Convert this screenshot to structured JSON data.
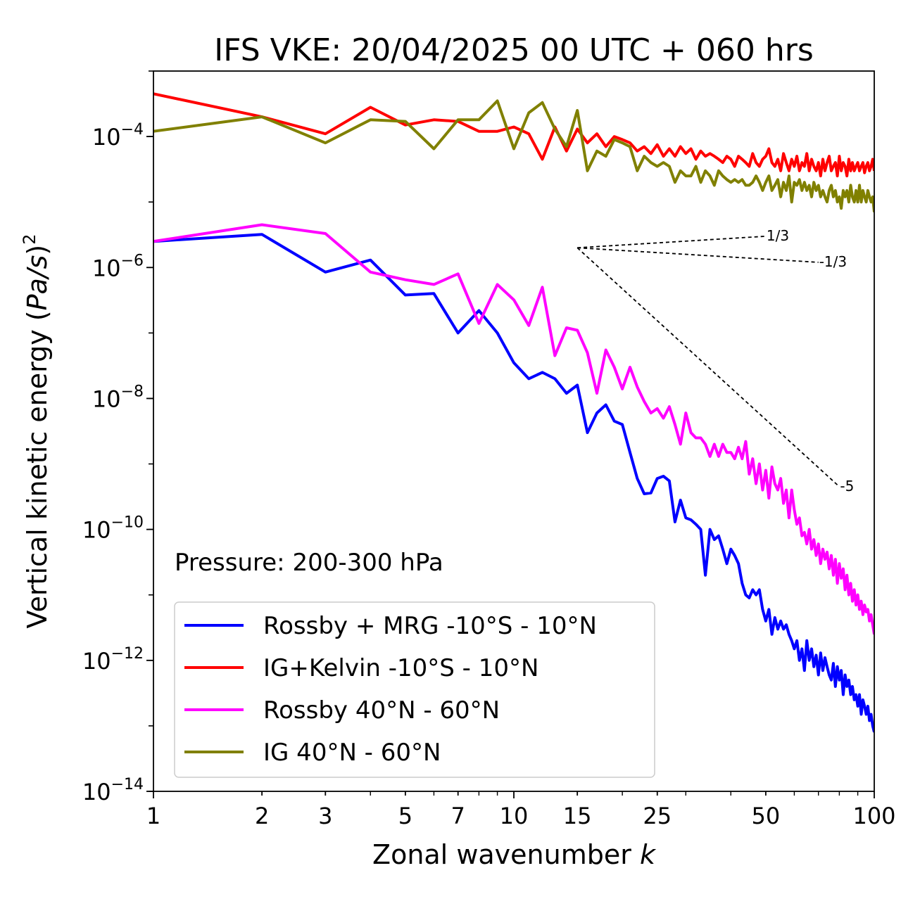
{
  "chart_data": {
    "type": "line",
    "title": "IFS VKE: 20/04/2025 00 UTC + 060 hrs",
    "xlabel_main": "Zonal wavenumber ",
    "xlabel_var": "k",
    "ylabel_main": "Vertical kinetic energy (",
    "ylabel_var": "Pa/s",
    "ylabel_close": ")",
    "ylabel_exp": "2",
    "xscale": "log",
    "yscale": "log",
    "xlim": [
      1,
      100
    ],
    "ylim": [
      1e-14,
      0.001
    ],
    "x_ticks": [
      1,
      2,
      3,
      5,
      7,
      10,
      15,
      25,
      50,
      100
    ],
    "x_tick_labels": [
      "1",
      "2",
      "3",
      "5",
      "7",
      "10",
      "15",
      "25",
      "50",
      "100"
    ],
    "y_ticks": [
      {
        "value": 0.0001,
        "base": "10",
        "exp": "−4"
      },
      {
        "value": 1e-06,
        "base": "10",
        "exp": "−6"
      },
      {
        "value": 1e-08,
        "base": "10",
        "exp": "−8"
      },
      {
        "value": 1e-10,
        "base": "10",
        "exp": "−10"
      },
      {
        "value": 1e-12,
        "base": "10",
        "exp": "−12"
      },
      {
        "value": 1e-14,
        "base": "10",
        "exp": "−14"
      }
    ],
    "annotation": "Pressure: 200-300 hPa",
    "legend_position": "lower-left",
    "reference_lines": [
      {
        "label": "1/3",
        "from": [
          15,
          2e-06
        ],
        "to": [
          50,
          3e-06
        ]
      },
      {
        "label": "-1/3",
        "from": [
          15,
          2e-06
        ],
        "to": [
          70,
          1.2e-06
        ]
      },
      {
        "label": "-5",
        "from": [
          15,
          2e-06
        ],
        "to": [
          80,
          4.5e-10
        ]
      }
    ],
    "series": [
      {
        "name": "Rossby + MRG -10°S - 10°N",
        "color": "#0000ff",
        "x": [
          1,
          2,
          3,
          4,
          5,
          6,
          7,
          8,
          9,
          10,
          11,
          12,
          13,
          14,
          15,
          16,
          17,
          18,
          19,
          20,
          21,
          22,
          23,
          24,
          25,
          26,
          27,
          28,
          29,
          30,
          31,
          32,
          33,
          34,
          35,
          36,
          37,
          38,
          39,
          40,
          41,
          42,
          43,
          44,
          45,
          46,
          47,
          48,
          49,
          50,
          51,
          52,
          53,
          54,
          55,
          56,
          57,
          58,
          59,
          60,
          61,
          62,
          63,
          64,
          65,
          66,
          67,
          68,
          69,
          70,
          71,
          72,
          73,
          74,
          75,
          76,
          77,
          78,
          79,
          80,
          81,
          82,
          83,
          84,
          85,
          86,
          87,
          88,
          89,
          90,
          91,
          92,
          93,
          94,
          95,
          96,
          97,
          98,
          99,
          100
        ],
        "y": [
          2.5e-06,
          3.2e-06,
          8.5e-07,
          1.3e-06,
          3.8e-07,
          4e-07,
          1e-07,
          2.2e-07,
          1e-07,
          3.5e-08,
          2e-08,
          2.5e-08,
          2e-08,
          1.2e-08,
          1.6e-08,
          3e-09,
          6e-09,
          8e-09,
          4.5e-09,
          4e-09,
          1.5e-09,
          6e-10,
          3.5e-10,
          3.6e-10,
          6e-10,
          6.5e-10,
          5.5e-10,
          1.3e-10,
          2.8e-10,
          1.5e-10,
          1.4e-10,
          1.2e-10,
          1e-10,
          2e-11,
          1e-10,
          7e-11,
          8e-11,
          5e-11,
          3e-11,
          5e-11,
          4e-11,
          3e-11,
          1.5e-11,
          1e-11,
          9e-12,
          1.2e-11,
          1e-11,
          1.2e-11,
          6e-12,
          4e-12,
          6e-12,
          2.5e-12,
          4.5e-12,
          3e-12,
          4e-12,
          3e-12,
          3.5e-12,
          2.5e-12,
          2e-12,
          1.5e-12,
          2e-12,
          1e-12,
          1.5e-12,
          7e-13,
          2e-12,
          1e-12,
          1.5e-12,
          8e-13,
          1.2e-12,
          6e-13,
          1.3e-12,
          7e-13,
          1.1e-12,
          8e-13,
          6e-13,
          5e-13,
          9e-13,
          4e-13,
          8e-13,
          5e-13,
          7e-13,
          3e-13,
          6e-13,
          4e-13,
          5e-13,
          3e-13,
          4e-13,
          2.5e-13,
          3e-13,
          2e-13,
          3e-13,
          1.5e-13,
          2.5e-13,
          2e-13,
          1.5e-13,
          2e-13,
          1.2e-13,
          1.5e-13,
          1e-13,
          8e-14
        ]
      },
      {
        "name": "IG+Kelvin -10°S - 10°N",
        "color": "#ff0000",
        "x": [
          1,
          2,
          3,
          4,
          5,
          6,
          7,
          8,
          9,
          10,
          11,
          12,
          13,
          14,
          15,
          16,
          17,
          18,
          19,
          20,
          21,
          22,
          23,
          24,
          25,
          26,
          27,
          28,
          29,
          30,
          31,
          32,
          33,
          34,
          35,
          36,
          37,
          38,
          39,
          40,
          41,
          42,
          43,
          44,
          45,
          46,
          47,
          48,
          49,
          50,
          51,
          52,
          53,
          54,
          55,
          56,
          57,
          58,
          59,
          60,
          61,
          62,
          63,
          64,
          65,
          66,
          67,
          68,
          69,
          70,
          71,
          72,
          73,
          74,
          75,
          76,
          77,
          78,
          79,
          80,
          81,
          82,
          83,
          84,
          85,
          86,
          87,
          88,
          89,
          90,
          91,
          92,
          93,
          94,
          95,
          96,
          97,
          98,
          99,
          100
        ],
        "y": [
          0.00045,
          0.0002,
          0.00011,
          0.00028,
          0.00015,
          0.00018,
          0.00017,
          0.00012,
          0.00012,
          0.00014,
          0.00011,
          4.5e-05,
          0.00014,
          6e-05,
          0.00013,
          8e-05,
          0.00011,
          7e-05,
          0.0001,
          9e-05,
          8e-05,
          6e-05,
          7e-05,
          5.5e-05,
          7.5e-05,
          5e-05,
          6.5e-05,
          5e-05,
          7e-05,
          5.5e-05,
          6.5e-05,
          4.5e-05,
          6e-05,
          5e-05,
          5.5e-05,
          5e-05,
          4.5e-05,
          4e-05,
          5e-05,
          4.5e-05,
          3.5e-05,
          5e-05,
          4.5e-05,
          4e-05,
          3.5e-05,
          5.5e-05,
          4e-05,
          3.5e-05,
          4.5e-05,
          5e-05,
          6.5e-05,
          4e-05,
          3.5e-05,
          4.5e-05,
          3e-05,
          5.5e-05,
          4e-05,
          3e-05,
          4.5e-05,
          3.5e-05,
          5e-05,
          3e-05,
          4e-05,
          3.5e-05,
          5.5e-05,
          3e-05,
          4.5e-05,
          3.5e-05,
          3e-05,
          4e-05,
          2.5e-05,
          4.5e-05,
          3e-05,
          4e-05,
          5e-05,
          3e-05,
          3.5e-05,
          4e-05,
          2.5e-05,
          5e-05,
          3e-05,
          4e-05,
          3.5e-05,
          2.5e-05,
          4.5e-05,
          3e-05,
          4e-05,
          3e-05,
          3.5e-05,
          4e-05,
          3e-05,
          3.5e-05,
          4e-05,
          2.8e-05,
          3.5e-05,
          4e-05,
          3e-05,
          3.5e-05,
          4.5e-05,
          3e-05
        ]
      },
      {
        "name": "Rossby 40°N - 60°N",
        "color": "#ff00ff",
        "x": [
          1,
          2,
          3,
          4,
          5,
          6,
          7,
          8,
          9,
          10,
          11,
          12,
          13,
          14,
          15,
          16,
          17,
          18,
          19,
          20,
          21,
          22,
          23,
          24,
          25,
          26,
          27,
          28,
          29,
          30,
          31,
          32,
          33,
          34,
          35,
          36,
          37,
          38,
          39,
          40,
          41,
          42,
          43,
          44,
          45,
          46,
          47,
          48,
          49,
          50,
          51,
          52,
          53,
          54,
          55,
          56,
          57,
          58,
          59,
          60,
          61,
          62,
          63,
          64,
          65,
          66,
          67,
          68,
          69,
          70,
          71,
          72,
          73,
          74,
          75,
          76,
          77,
          78,
          79,
          80,
          81,
          82,
          83,
          84,
          85,
          86,
          87,
          88,
          89,
          90,
          91,
          92,
          93,
          94,
          95,
          96,
          97,
          98,
          99,
          100
        ],
        "y": [
          2.5e-06,
          4.5e-06,
          3.3e-06,
          8.5e-07,
          6.5e-07,
          5.5e-07,
          8e-07,
          1.4e-07,
          5.5e-07,
          3.2e-07,
          1.3e-07,
          5e-07,
          4.5e-08,
          1.2e-07,
          1.1e-07,
          5e-08,
          1.2e-08,
          5.5e-08,
          3e-08,
          1.4e-08,
          3e-08,
          1.5e-08,
          9e-09,
          6e-09,
          7e-09,
          5e-09,
          7.5e-09,
          4e-09,
          2e-09,
          6e-09,
          3e-09,
          2.5e-09,
          2.5e-09,
          2e-09,
          1.3e-09,
          2e-09,
          1.3e-09,
          2e-09,
          1.5e-09,
          1.5e-09,
          1.2e-09,
          1.8e-09,
          1.2e-09,
          2.2e-09,
          7e-10,
          1.2e-09,
          5e-10,
          1e-09,
          4e-10,
          8e-10,
          3e-10,
          9e-10,
          5e-10,
          4e-10,
          6e-10,
          2.5e-10,
          4e-10,
          1.5e-10,
          4e-10,
          2e-10,
          1.2e-10,
          1.5e-10,
          8e-11,
          9e-11,
          6e-11,
          1e-10,
          5e-11,
          7e-11,
          4e-11,
          6e-11,
          3e-11,
          5e-11,
          3.5e-11,
          4.5e-11,
          2.5e-11,
          4e-11,
          2e-11,
          3.5e-11,
          1.5e-11,
          3e-11,
          1.8e-11,
          2.5e-11,
          1.2e-11,
          2e-11,
          1e-11,
          1.5e-11,
          8e-12,
          1.2e-11,
          7e-12,
          1e-11,
          6e-12,
          8e-12,
          5e-12,
          7e-12,
          5.5e-12,
          6e-12,
          4e-12,
          5e-12,
          3.5e-12,
          2.5e-12
        ]
      },
      {
        "name": "IG 40°N - 60°N",
        "color": "#808000",
        "x": [
          1,
          2,
          3,
          4,
          5,
          6,
          7,
          8,
          9,
          10,
          11,
          12,
          13,
          14,
          15,
          16,
          17,
          18,
          19,
          20,
          21,
          22,
          23,
          24,
          25,
          26,
          27,
          28,
          29,
          30,
          31,
          32,
          33,
          34,
          35,
          36,
          37,
          38,
          39,
          40,
          41,
          42,
          43,
          44,
          45,
          46,
          47,
          48,
          49,
          50,
          51,
          52,
          53,
          54,
          55,
          56,
          57,
          58,
          59,
          60,
          61,
          62,
          63,
          64,
          65,
          66,
          67,
          68,
          69,
          70,
          71,
          72,
          73,
          74,
          75,
          76,
          77,
          78,
          79,
          80,
          81,
          82,
          83,
          84,
          85,
          86,
          87,
          88,
          89,
          90,
          91,
          92,
          93,
          94,
          95,
          96,
          97,
          98,
          99,
          100
        ],
        "y": [
          0.00012,
          0.0002,
          8e-05,
          0.00018,
          0.00017,
          6.5e-05,
          0.00018,
          0.00018,
          0.00035,
          6.5e-05,
          0.00023,
          0.00033,
          0.00013,
          7e-05,
          0.00025,
          3e-05,
          6e-05,
          5e-05,
          9e-05,
          8e-05,
          7e-05,
          3e-05,
          5e-05,
          4e-05,
          3.5e-05,
          4e-05,
          3.5e-05,
          2e-05,
          3e-05,
          2.5e-05,
          2.5e-05,
          3.5e-05,
          2e-05,
          3e-05,
          2.5e-05,
          1.8e-05,
          3e-05,
          2.5e-05,
          2.2e-05,
          2e-05,
          2.2e-05,
          2e-05,
          2.2e-05,
          1.8e-05,
          1.8e-05,
          2e-05,
          2.5e-05,
          2e-05,
          1.5e-05,
          2e-05,
          2.5e-05,
          1.5e-05,
          1.8e-05,
          2.2e-05,
          1.2e-05,
          2e-05,
          1.5e-05,
          2.5e-05,
          1e-05,
          2e-05,
          1.8e-05,
          2.2e-05,
          1.5e-05,
          2e-05,
          1.5e-05,
          1.8e-05,
          1.2e-05,
          2e-05,
          1.5e-05,
          1.8e-05,
          1.2e-05,
          1.5e-05,
          1.2e-05,
          1e-05,
          1.5e-05,
          1.8e-05,
          1.2e-05,
          1.5e-05,
          1e-05,
          1.2e-05,
          8e-06,
          1.5e-05,
          1.2e-05,
          1.5e-05,
          1e-05,
          1.8e-05,
          1.2e-05,
          1e-05,
          1.5e-05,
          1e-05,
          1.8e-05,
          1e-05,
          1.5e-05,
          1.2e-05,
          1e-05,
          1.5e-05,
          1.2e-05,
          1e-05,
          1.2e-05,
          7e-06
        ]
      }
    ]
  }
}
